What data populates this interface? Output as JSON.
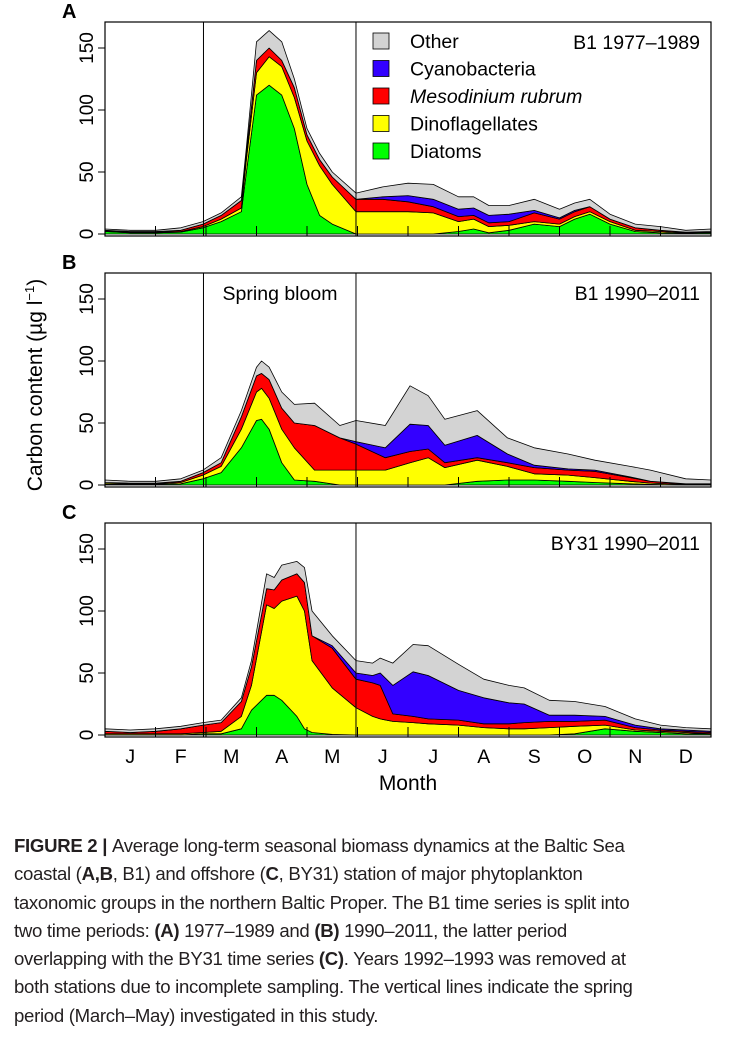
{
  "chart_data": [
    {
      "type": "area",
      "stacked": true,
      "panel_label": "A",
      "title": "B1 1977–1989",
      "annotation": "",
      "ylim": [
        0,
        170
      ],
      "yticks": [
        "0",
        "50",
        "100",
        "150"
      ],
      "x": [
        0,
        0.5,
        1,
        1.5,
        1.94,
        2.3,
        2.7,
        2.8,
        3.0,
        3.25,
        3.5,
        3.75,
        4.0,
        4.25,
        4.5,
        4.97,
        5.5,
        6.0,
        6.5,
        7.0,
        7.3,
        7.6,
        8.0,
        8.5,
        9.0,
        9.3,
        9.6,
        10,
        10.5,
        11,
        11.5,
        12
      ],
      "series": [
        {
          "name": "Diatoms",
          "values": [
            2,
            1,
            1,
            1.5,
            5,
            10,
            18,
            50,
            112,
            120,
            112,
            85,
            40,
            15,
            8,
            0,
            0,
            0,
            0,
            2,
            4,
            1,
            3,
            8,
            6,
            12,
            16,
            8,
            2,
            1,
            0.5,
            1
          ]
        },
        {
          "name": "Dinoflagellates",
          "values": [
            0.5,
            0.5,
            0.5,
            0.5,
            1,
            2,
            3,
            10,
            18,
            23,
            23,
            25,
            35,
            40,
            32,
            18,
            18,
            18,
            17,
            8,
            8,
            5,
            4,
            2,
            2,
            2,
            2,
            2,
            1,
            1,
            0.5,
            0.5
          ]
        },
        {
          "name": "Mesodinium rubrum",
          "values": [
            0.5,
            0.5,
            0.5,
            1,
            2,
            3,
            6,
            5,
            10,
            7,
            5,
            8,
            5,
            5,
            6,
            10,
            10,
            8,
            5,
            4,
            3,
            3,
            3,
            7,
            4,
            4,
            4,
            2,
            2,
            1,
            0.5,
            0.5
          ]
        },
        {
          "name": "Cyanobacteria",
          "values": [
            0,
            0,
            0,
            0,
            0,
            0,
            0,
            0,
            0,
            0,
            0,
            0,
            0,
            0,
            0,
            0,
            2,
            5,
            6,
            6,
            6,
            6,
            6,
            2,
            1,
            1,
            0,
            0,
            0,
            0,
            0,
            0
          ]
        },
        {
          "name": "Other",
          "values": [
            1,
            1,
            1,
            2,
            2,
            2,
            3,
            5,
            15,
            14,
            15,
            7,
            5,
            5,
            4,
            5,
            8,
            10,
            12,
            10,
            9,
            8,
            7,
            9,
            7,
            6,
            6,
            4,
            3,
            3,
            1.5,
            2
          ]
        }
      ]
    },
    {
      "type": "area",
      "stacked": true,
      "panel_label": "B",
      "title": "B1 1990–2011",
      "annotation": "Spring bloom",
      "ylim": [
        0,
        170
      ],
      "yticks": [
        "0",
        "50",
        "100",
        "150"
      ],
      "x": [
        0,
        0.5,
        1,
        1.5,
        1.94,
        2.3,
        2.7,
        3.0,
        3.1,
        3.25,
        3.5,
        3.75,
        4.15,
        4.65,
        4.97,
        5.55,
        6.04,
        6.4,
        6.73,
        7.37,
        7.97,
        8.5,
        9.17,
        9.7,
        10.4,
        10.8,
        11.5,
        12
      ],
      "series": [
        {
          "name": "Diatoms",
          "values": [
            0.5,
            0.5,
            0.5,
            1,
            5,
            10,
            30,
            52,
            53,
            45,
            18,
            4,
            3,
            0,
            0,
            0,
            0,
            0,
            0,
            3,
            4,
            4,
            3,
            2,
            1,
            0.5,
            0,
            0
          ]
        },
        {
          "name": "Dinoflagellates",
          "values": [
            1,
            0.5,
            0.5,
            1,
            3,
            5,
            15,
            23,
            25,
            25,
            27,
            26,
            9,
            12,
            12,
            12,
            18,
            22,
            14,
            17,
            11,
            5,
            5,
            4,
            2,
            1,
            0.5,
            0.5
          ]
        },
        {
          "name": "Mesodinium rubrum",
          "values": [
            0.5,
            0.5,
            0.5,
            1,
            2,
            3,
            10,
            13,
            12,
            15,
            17,
            20,
            36,
            26,
            21,
            10,
            9,
            7,
            4,
            2,
            3,
            5,
            4,
            5,
            3,
            1.5,
            0.5,
            0.5
          ]
        },
        {
          "name": "Cyanobacteria",
          "values": [
            0,
            0,
            0,
            0,
            0,
            0,
            0,
            0,
            0,
            0,
            0,
            0,
            0,
            0,
            2,
            8,
            22,
            19,
            14,
            18,
            7,
            2,
            1,
            1,
            0.5,
            0,
            0,
            0
          ]
        },
        {
          "name": "Other",
          "values": [
            2,
            1.5,
            1.5,
            2,
            2,
            4,
            5,
            7,
            10,
            10,
            13,
            15,
            18,
            10,
            17,
            18,
            31,
            24,
            21,
            20,
            13,
            14,
            12,
            8,
            8.5,
            9,
            4,
            3
          ]
        }
      ]
    },
    {
      "type": "area",
      "stacked": true,
      "panel_label": "C",
      "title": "BY31 1990–2011",
      "annotation": "",
      "ylim": [
        0,
        170
      ],
      "yticks": [
        "0",
        "50",
        "100",
        "150"
      ],
      "x": [
        0,
        0.5,
        1,
        1.5,
        1.94,
        2.3,
        2.7,
        2.9,
        3.2,
        3.35,
        3.5,
        3.8,
        3.95,
        4.1,
        4.5,
        4.97,
        5.3,
        5.45,
        5.7,
        6.1,
        6.4,
        7.0,
        7.5,
        8.0,
        8.3,
        8.8,
        9.3,
        9.9,
        10.5,
        11,
        11.5,
        12
      ],
      "series": [
        {
          "name": "Diatoms",
          "values": [
            0,
            0,
            0,
            0,
            1,
            1,
            5,
            20,
            32,
            32,
            28,
            15,
            5,
            2,
            0.5,
            0,
            0,
            0,
            0,
            0,
            0,
            0,
            0,
            0,
            0,
            0,
            1,
            5,
            3,
            2,
            1,
            1
          ]
        },
        {
          "name": "Dinoflagellates",
          "values": [
            1,
            1,
            1,
            1,
            1,
            2,
            10,
            20,
            73,
            70,
            80,
            97,
            95,
            58,
            37.5,
            22,
            15,
            13,
            11,
            10,
            9,
            8,
            6,
            5,
            5,
            6,
            6,
            3,
            1,
            1,
            1,
            0
          ]
        },
        {
          "name": "Mesodinium rubrum",
          "values": [
            2,
            1,
            2,
            4,
            6,
            7,
            12,
            15,
            13,
            15,
            17,
            18,
            23,
            20,
            32,
            23,
            27,
            27,
            6,
            5,
            4,
            4,
            3,
            4,
            5,
            5,
            4,
            4,
            2,
            1,
            1,
            1
          ]
        },
        {
          "name": "Cyanobacteria",
          "values": [
            0,
            0,
            0,
            0,
            0,
            0,
            0,
            0,
            0,
            0,
            0,
            0,
            0,
            0,
            2,
            5,
            6,
            10,
            23,
            36,
            35,
            24,
            21,
            17,
            15,
            5,
            5,
            3,
            2,
            1,
            1,
            1
          ]
        },
        {
          "name": "Other",
          "values": [
            2,
            2,
            2,
            2,
            2,
            2,
            3,
            5,
            12,
            10,
            12,
            10,
            12,
            20,
            8,
            10,
            10,
            12,
            18,
            22,
            24,
            21,
            15,
            14,
            13,
            12,
            11,
            8,
            5,
            3,
            2,
            2
          ]
        }
      ]
    }
  ],
  "legend": {
    "placement": "top-right (panel A)",
    "items": [
      {
        "label": "Other",
        "color": "#d3d3d3",
        "italic": false
      },
      {
        "label": "Cyanobacteria",
        "color": "#3300ff",
        "italic": false
      },
      {
        "label": "Mesodinium rubrum",
        "color": "#ff0000",
        "italic": true
      },
      {
        "label": "Dinoflagellates",
        "color": "#ffff00",
        "italic": false
      },
      {
        "label": "Diatoms",
        "color": "#00ff00",
        "italic": false
      }
    ]
  },
  "series_colors": {
    "Diatoms": "#00ff00",
    "Dinoflagellates": "#ffff00",
    "Mesodinium rubrum": "#ff0000",
    "Cyanobacteria": "#3300ff",
    "Other": "#d3d3d3"
  },
  "ylabel": "Carbon content  (µg l",
  "ylabel_superscript": "−1",
  "ylabel_close": ")",
  "xlabel": "Month",
  "month_labels": [
    "J",
    "F",
    "M",
    "A",
    "M",
    "J",
    "J",
    "A",
    "S",
    "O",
    "N",
    "D"
  ],
  "spring_period_lines": [
    1.95,
    4.97
  ],
  "caption": {
    "lines": [
      [
        {
          "t": "FIGURE 2 | ",
          "b": true
        },
        {
          "t": "Average long-term seasonal biomass dynamics at the Baltic Sea",
          "b": false
        }
      ],
      [
        {
          "t": "coastal (",
          "b": false
        },
        {
          "t": "A,B",
          "b": true
        },
        {
          "t": ", B1) and offshore (",
          "b": false
        },
        {
          "t": "C",
          "b": true
        },
        {
          "t": ", BY31) station of major phytoplankton",
          "b": false
        }
      ],
      [
        {
          "t": "taxonomic groups in the northern Baltic Proper. The B1 time series is split into",
          "b": false
        }
      ],
      [
        {
          "t": "two time periods: ",
          "b": false
        },
        {
          "t": "(A)",
          "b": true
        },
        {
          "t": " 1977–1989 and ",
          "b": false
        },
        {
          "t": "(B)",
          "b": true
        },
        {
          "t": " 1990–2011, the latter period",
          "b": false
        }
      ],
      [
        {
          "t": "overlapping with the BY31 time series ",
          "b": false
        },
        {
          "t": "(C)",
          "b": true
        },
        {
          "t": ". Years 1992–1993 was removed at",
          "b": false
        }
      ],
      [
        {
          "t": "both stations due to incomplete sampling. The vertical lines indicate the spring",
          "b": false
        }
      ],
      [
        {
          "t": "period (March–May) investigated in this study.",
          "b": false
        }
      ]
    ]
  }
}
